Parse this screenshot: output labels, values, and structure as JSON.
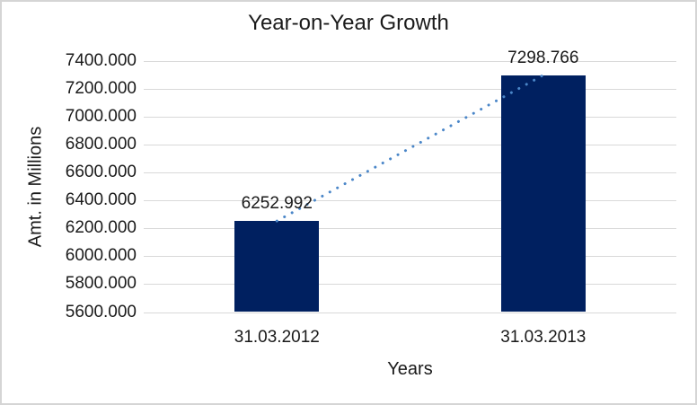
{
  "frame": {
    "background": "#ffffff",
    "border_color": "#d5d5d5"
  },
  "chart_data": {
    "type": "bar",
    "title": "Year-on-Year Growth",
    "xlabel": "Years",
    "ylabel": "Amt. in Millions",
    "categories": [
      "31.03.2012",
      "31.03.2013"
    ],
    "values": [
      6252.992,
      7298.766
    ],
    "data_labels": [
      "6252.992",
      "7298.766"
    ],
    "ylim": [
      5600,
      7400
    ],
    "ytick_step": 200,
    "ytick_decimals": 3,
    "ytick_labels": [
      "5600.000",
      "5800.000",
      "6000.000",
      "6200.000",
      "6400.000",
      "6600.000",
      "6800.000",
      "7000.000",
      "7200.000",
      "7400.000"
    ],
    "grid": true,
    "legend": false,
    "trendline_style": "dotted",
    "colors": {
      "bar": "#002060",
      "trendline": "#4a86c8",
      "gridline": "#d9d9d9",
      "text": "#1a1a1a"
    }
  }
}
